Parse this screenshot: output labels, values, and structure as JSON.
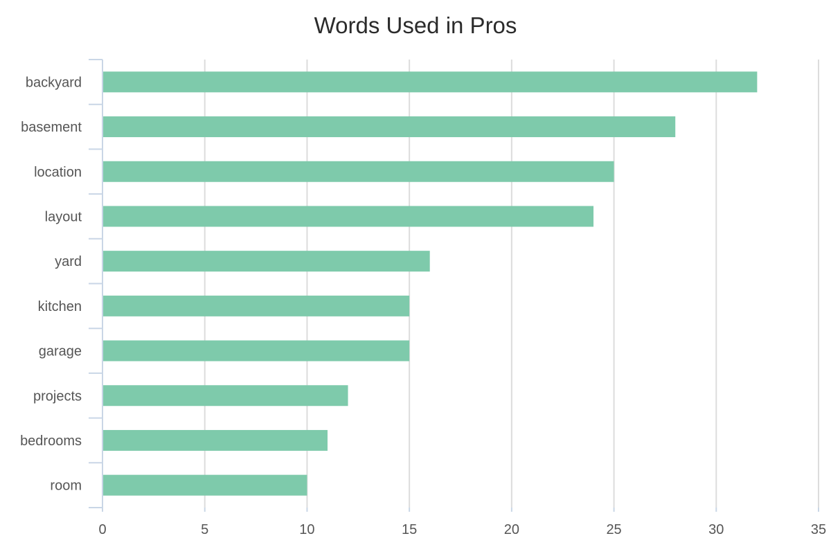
{
  "chart_data": {
    "type": "bar",
    "orientation": "horizontal",
    "title": "Words Used in Pros",
    "xlabel": "",
    "ylabel": "",
    "categories": [
      "backyard",
      "basement",
      "location",
      "layout",
      "yard",
      "kitchen",
      "garage",
      "projects",
      "bedrooms",
      "room"
    ],
    "values": [
      32,
      28,
      25,
      24,
      16,
      15,
      15,
      12,
      11,
      10
    ],
    "xlim": [
      0,
      35
    ],
    "xticks": [
      0,
      5,
      10,
      15,
      20,
      25,
      30,
      35
    ],
    "grid": true,
    "legend": "none",
    "colors": {
      "bar": "#7ecaab",
      "grid": "#dcdcdc",
      "axis": "#c9d6e6",
      "text": "#555555",
      "title": "#2b2b2b"
    }
  }
}
